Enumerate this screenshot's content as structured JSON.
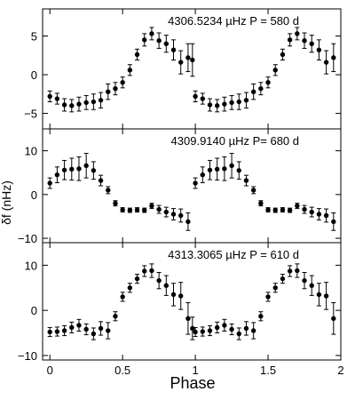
{
  "chart_data": {
    "type": "scatter",
    "xlabel": "Phase",
    "ylabel": "δf (nHz)",
    "x_range": [
      -0.05,
      2.0
    ],
    "x_ticks": [
      0,
      0.5,
      1,
      1.5,
      2
    ],
    "x_tick_labels": [
      "0",
      "0.5",
      "1",
      "1.5",
      "2"
    ],
    "grid": false,
    "panels": [
      {
        "annotation": "4306.5234 µHz  P = 580 d",
        "ylim": [
          -7,
          8.5
        ],
        "y_ticks": [
          -5,
          0,
          5
        ],
        "y_tick_labels": [
          "−5",
          "0",
          "5"
        ],
        "points": [
          {
            "x": 0.0,
            "y": -2.8,
            "err": 0.7
          },
          {
            "x": 0.05,
            "y": -3.1,
            "err": 0.7
          },
          {
            "x": 0.1,
            "y": -3.9,
            "err": 0.8
          },
          {
            "x": 0.15,
            "y": -4.0,
            "err": 0.8
          },
          {
            "x": 0.2,
            "y": -3.8,
            "err": 0.9
          },
          {
            "x": 0.25,
            "y": -3.6,
            "err": 0.9
          },
          {
            "x": 0.3,
            "y": -3.5,
            "err": 1.0
          },
          {
            "x": 0.35,
            "y": -3.3,
            "err": 1.0
          },
          {
            "x": 0.4,
            "y": -2.2,
            "err": 1.0
          },
          {
            "x": 0.45,
            "y": -1.8,
            "err": 0.8
          },
          {
            "x": 0.5,
            "y": -1.0,
            "err": 0.7
          },
          {
            "x": 0.55,
            "y": 0.6,
            "err": 0.7
          },
          {
            "x": 0.6,
            "y": 2.6,
            "err": 0.7
          },
          {
            "x": 0.65,
            "y": 4.5,
            "err": 0.8
          },
          {
            "x": 0.7,
            "y": 5.3,
            "err": 0.8
          },
          {
            "x": 0.75,
            "y": 4.4,
            "err": 1.0
          },
          {
            "x": 0.8,
            "y": 4.0,
            "err": 1.1
          },
          {
            "x": 0.85,
            "y": 3.2,
            "err": 1.3
          },
          {
            "x": 0.9,
            "y": 1.6,
            "err": 1.5
          },
          {
            "x": 0.95,
            "y": 2.2,
            "err": 1.8
          },
          {
            "x": 0.98,
            "y": 1.9,
            "err": 2.1
          },
          {
            "x": 1.0,
            "y": -2.8,
            "err": 0.7
          },
          {
            "x": 1.05,
            "y": -3.1,
            "err": 0.7
          },
          {
            "x": 1.1,
            "y": -3.9,
            "err": 0.8
          },
          {
            "x": 1.15,
            "y": -4.0,
            "err": 0.8
          },
          {
            "x": 1.2,
            "y": -3.8,
            "err": 0.9
          },
          {
            "x": 1.25,
            "y": -3.6,
            "err": 0.9
          },
          {
            "x": 1.3,
            "y": -3.5,
            "err": 1.0
          },
          {
            "x": 1.35,
            "y": -3.3,
            "err": 1.0
          },
          {
            "x": 1.4,
            "y": -2.2,
            "err": 1.0
          },
          {
            "x": 1.45,
            "y": -1.8,
            "err": 0.8
          },
          {
            "x": 1.5,
            "y": -1.0,
            "err": 0.7
          },
          {
            "x": 1.55,
            "y": 0.6,
            "err": 0.7
          },
          {
            "x": 1.6,
            "y": 2.6,
            "err": 0.7
          },
          {
            "x": 1.65,
            "y": 4.5,
            "err": 0.8
          },
          {
            "x": 1.7,
            "y": 5.3,
            "err": 0.8
          },
          {
            "x": 1.75,
            "y": 4.4,
            "err": 1.0
          },
          {
            "x": 1.8,
            "y": 4.0,
            "err": 1.1
          },
          {
            "x": 1.85,
            "y": 3.2,
            "err": 1.3
          },
          {
            "x": 1.9,
            "y": 1.6,
            "err": 1.5
          },
          {
            "x": 1.95,
            "y": 2.2,
            "err": 1.8
          }
        ]
      },
      {
        "annotation": "4309.9140 µHz  P= 680 d",
        "ylim": [
          -11,
          15
        ],
        "y_ticks": [
          -10,
          0,
          10
        ],
        "y_tick_labels": [
          "−10",
          "0",
          "10"
        ],
        "points": [
          {
            "x": 0.0,
            "y": 2.6,
            "err": 1.2
          },
          {
            "x": 0.05,
            "y": 4.5,
            "err": 1.8
          },
          {
            "x": 0.1,
            "y": 5.6,
            "err": 2.2
          },
          {
            "x": 0.15,
            "y": 5.8,
            "err": 2.5
          },
          {
            "x": 0.2,
            "y": 5.9,
            "err": 2.7
          },
          {
            "x": 0.25,
            "y": 6.6,
            "err": 2.8
          },
          {
            "x": 0.3,
            "y": 5.5,
            "err": 2.0
          },
          {
            "x": 0.35,
            "y": 3.2,
            "err": 1.2
          },
          {
            "x": 0.4,
            "y": 1.0,
            "err": 0.8
          },
          {
            "x": 0.45,
            "y": -2.0,
            "err": 0.6
          },
          {
            "x": 0.5,
            "y": -3.5,
            "err": 0.5
          },
          {
            "x": 0.55,
            "y": -3.6,
            "err": 0.5
          },
          {
            "x": 0.6,
            "y": -3.5,
            "err": 0.5
          },
          {
            "x": 0.65,
            "y": -3.6,
            "err": 0.5
          },
          {
            "x": 0.7,
            "y": -2.6,
            "err": 0.6
          },
          {
            "x": 0.75,
            "y": -3.4,
            "err": 0.9
          },
          {
            "x": 0.8,
            "y": -4.0,
            "err": 1.1
          },
          {
            "x": 0.85,
            "y": -4.5,
            "err": 1.3
          },
          {
            "x": 0.9,
            "y": -4.8,
            "err": 1.5
          },
          {
            "x": 0.95,
            "y": -6.2,
            "err": 2.0
          },
          {
            "x": 1.0,
            "y": 2.6,
            "err": 1.2
          },
          {
            "x": 1.05,
            "y": 4.5,
            "err": 1.8
          },
          {
            "x": 1.1,
            "y": 5.6,
            "err": 2.2
          },
          {
            "x": 1.15,
            "y": 5.8,
            "err": 2.5
          },
          {
            "x": 1.2,
            "y": 5.9,
            "err": 2.7
          },
          {
            "x": 1.25,
            "y": 6.6,
            "err": 2.8
          },
          {
            "x": 1.3,
            "y": 5.5,
            "err": 2.0
          },
          {
            "x": 1.35,
            "y": 3.2,
            "err": 1.2
          },
          {
            "x": 1.4,
            "y": 1.0,
            "err": 0.8
          },
          {
            "x": 1.45,
            "y": -2.0,
            "err": 0.6
          },
          {
            "x": 1.5,
            "y": -3.5,
            "err": 0.5
          },
          {
            "x": 1.55,
            "y": -3.6,
            "err": 0.5
          },
          {
            "x": 1.6,
            "y": -3.5,
            "err": 0.5
          },
          {
            "x": 1.65,
            "y": -3.6,
            "err": 0.5
          },
          {
            "x": 1.7,
            "y": -2.6,
            "err": 0.6
          },
          {
            "x": 1.75,
            "y": -3.4,
            "err": 0.9
          },
          {
            "x": 1.8,
            "y": -4.0,
            "err": 1.1
          },
          {
            "x": 1.85,
            "y": -4.5,
            "err": 1.3
          },
          {
            "x": 1.9,
            "y": -4.8,
            "err": 1.5
          },
          {
            "x": 1.95,
            "y": -6.2,
            "err": 2.0
          }
        ]
      },
      {
        "annotation": "4313.3065 µHz  P = 610 d",
        "ylim": [
          -11,
          15
        ],
        "y_ticks": [
          -10,
          0,
          10
        ],
        "y_tick_labels": [
          "−10",
          "0",
          "10"
        ],
        "points": [
          {
            "x": 0.0,
            "y": -4.8,
            "err": 1.0
          },
          {
            "x": 0.05,
            "y": -4.7,
            "err": 1.0
          },
          {
            "x": 0.1,
            "y": -4.5,
            "err": 1.1
          },
          {
            "x": 0.15,
            "y": -3.8,
            "err": 1.2
          },
          {
            "x": 0.2,
            "y": -3.3,
            "err": 1.3
          },
          {
            "x": 0.25,
            "y": -4.2,
            "err": 1.2
          },
          {
            "x": 0.3,
            "y": -5.2,
            "err": 1.3
          },
          {
            "x": 0.35,
            "y": -4.0,
            "err": 1.5
          },
          {
            "x": 0.4,
            "y": -4.5,
            "err": 1.8
          },
          {
            "x": 0.45,
            "y": -1.3,
            "err": 1.0
          },
          {
            "x": 0.5,
            "y": 3.0,
            "err": 1.0
          },
          {
            "x": 0.55,
            "y": 5.0,
            "err": 1.0
          },
          {
            "x": 0.6,
            "y": 7.0,
            "err": 1.0
          },
          {
            "x": 0.65,
            "y": 8.7,
            "err": 1.2
          },
          {
            "x": 0.7,
            "y": 8.8,
            "err": 1.5
          },
          {
            "x": 0.75,
            "y": 6.6,
            "err": 1.8
          },
          {
            "x": 0.8,
            "y": 5.5,
            "err": 2.2
          },
          {
            "x": 0.85,
            "y": 3.5,
            "err": 2.5
          },
          {
            "x": 0.9,
            "y": 3.2,
            "err": 3.0
          },
          {
            "x": 0.95,
            "y": -1.8,
            "err": 3.5
          },
          {
            "x": 0.98,
            "y": -4.0,
            "err": 2.5
          },
          {
            "x": 1.0,
            "y": -4.8,
            "err": 1.0
          },
          {
            "x": 1.05,
            "y": -4.7,
            "err": 1.0
          },
          {
            "x": 1.1,
            "y": -4.5,
            "err": 1.1
          },
          {
            "x": 1.15,
            "y": -3.8,
            "err": 1.2
          },
          {
            "x": 1.2,
            "y": -3.3,
            "err": 1.3
          },
          {
            "x": 1.25,
            "y": -4.2,
            "err": 1.2
          },
          {
            "x": 1.3,
            "y": -5.2,
            "err": 1.3
          },
          {
            "x": 1.35,
            "y": -4.0,
            "err": 1.5
          },
          {
            "x": 1.4,
            "y": -4.5,
            "err": 1.8
          },
          {
            "x": 1.45,
            "y": -1.3,
            "err": 1.0
          },
          {
            "x": 1.5,
            "y": 3.0,
            "err": 1.0
          },
          {
            "x": 1.55,
            "y": 5.0,
            "err": 1.0
          },
          {
            "x": 1.6,
            "y": 7.0,
            "err": 1.0
          },
          {
            "x": 1.65,
            "y": 8.7,
            "err": 1.2
          },
          {
            "x": 1.7,
            "y": 8.8,
            "err": 1.5
          },
          {
            "x": 1.75,
            "y": 6.6,
            "err": 1.8
          },
          {
            "x": 1.8,
            "y": 5.5,
            "err": 2.2
          },
          {
            "x": 1.85,
            "y": 3.5,
            "err": 2.5
          },
          {
            "x": 1.9,
            "y": 3.2,
            "err": 3.0
          },
          {
            "x": 1.95,
            "y": -1.8,
            "err": 3.5
          }
        ]
      }
    ]
  }
}
